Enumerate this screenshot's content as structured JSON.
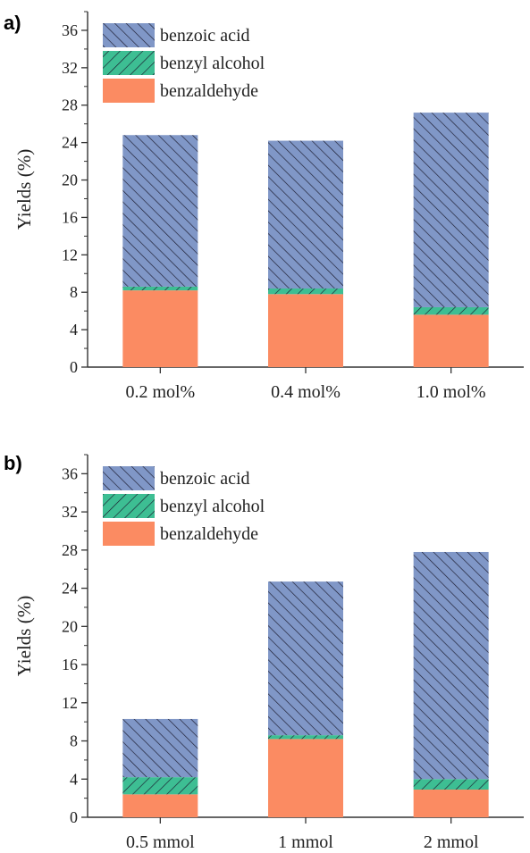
{
  "colors": {
    "benzoic_acid": "#8097C7",
    "benzyl_alcohol": "#3DBE93",
    "benzaldehyde": "#FB8B62",
    "axis": "#333333"
  },
  "chart_data": [
    {
      "type": "bar",
      "stacked": true,
      "panel_label": "a)",
      "ylabel": "Yields (%)",
      "xlabel": "",
      "ylim": [
        0,
        38
      ],
      "yticks": [
        0,
        4,
        8,
        12,
        16,
        20,
        24,
        28,
        32,
        36
      ],
      "categories": [
        "0.2 mol%",
        "0.4 mol%",
        "1.0 mol%"
      ],
      "series": [
        {
          "name": "benzaldehyde",
          "color": "#FB8B62",
          "pattern": "solid",
          "values": [
            8.2,
            7.8,
            5.6
          ]
        },
        {
          "name": "benzyl alcohol",
          "color": "#3DBE93",
          "pattern": "hatch-forward",
          "values": [
            0.4,
            0.6,
            0.8
          ]
        },
        {
          "name": "benzoic acid",
          "color": "#8097C7",
          "pattern": "hatch-backward",
          "values": [
            16.2,
            15.8,
            20.8
          ]
        }
      ],
      "legend_order": [
        "benzoic acid",
        "benzyl alcohol",
        "benzaldehyde"
      ],
      "legend_position": "top-left",
      "grid": false
    },
    {
      "type": "bar",
      "stacked": true,
      "panel_label": "b)",
      "ylabel": "Yields (%)",
      "xlabel": "",
      "ylim": [
        0,
        38
      ],
      "yticks": [
        0,
        4,
        8,
        12,
        16,
        20,
        24,
        28,
        32,
        36
      ],
      "categories": [
        "0.5 mmol",
        "1 mmol",
        "2 mmol"
      ],
      "series": [
        {
          "name": "benzaldehyde",
          "color": "#FB8B62",
          "pattern": "solid",
          "values": [
            2.4,
            8.2,
            2.9
          ]
        },
        {
          "name": "benzyl alcohol",
          "color": "#3DBE93",
          "pattern": "hatch-forward",
          "values": [
            1.8,
            0.4,
            1.1
          ]
        },
        {
          "name": "benzoic acid",
          "color": "#8097C7",
          "pattern": "hatch-backward",
          "values": [
            6.1,
            16.1,
            23.8
          ]
        }
      ],
      "legend_order": [
        "benzoic acid",
        "benzyl alcohol",
        "benzaldehyde"
      ],
      "legend_position": "top-left",
      "grid": false
    }
  ]
}
